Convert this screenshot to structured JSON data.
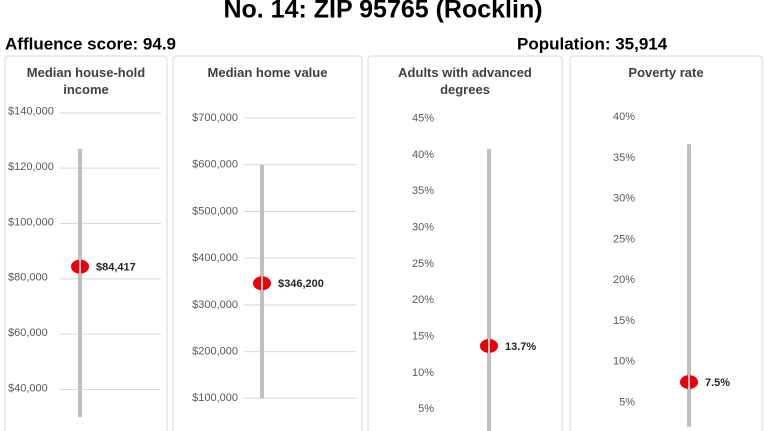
{
  "header": {
    "title": "No. 14: ZIP 95765 (Rocklin)",
    "affluence": "Affluence score: 94.9",
    "population": "Population: 35,914"
  },
  "chart_data": [
    {
      "type": "range-dot",
      "title": "Median house-hold income",
      "range": [
        30000,
        127000
      ],
      "range_color": "#bfbfbf",
      "values": [
        84417
      ],
      "value_labels": [
        "$84,417"
      ],
      "color": "#e8000b",
      "ylim": [
        25000,
        145000
      ],
      "yticks": [
        {
          "value": 40000,
          "label": "$40,000"
        },
        {
          "value": 60000,
          "label": "$60,000"
        },
        {
          "value": 80000,
          "label": "$80,000"
        },
        {
          "value": 100000,
          "label": "$100,000"
        },
        {
          "value": 120000,
          "label": "$120,000"
        },
        {
          "value": 140000,
          "label": "$140,000"
        }
      ],
      "grid": true
    },
    {
      "type": "range-dot",
      "title": "Median home value",
      "range": [
        100000,
        600000
      ],
      "range_color": "#bfbfbf",
      "values": [
        346200
      ],
      "value_labels": [
        "$346,200"
      ],
      "color": "#e8000b",
      "ylim": [
        30000,
        730000
      ],
      "yticks": [
        {
          "value": 100000,
          "label": "$100,000"
        },
        {
          "value": 200000,
          "label": "$200,000"
        },
        {
          "value": 300000,
          "label": "$300,000"
        },
        {
          "value": 400000,
          "label": "$400,000"
        },
        {
          "value": 500000,
          "label": "$500,000"
        },
        {
          "value": 600000,
          "label": "$600,000"
        },
        {
          "value": 700000,
          "label": "$700,000"
        }
      ],
      "grid": true
    },
    {
      "type": "range-dot",
      "title": "Adults with advanced degrees",
      "range": [
        2,
        40.8
      ],
      "range_color": "#bfbfbf",
      "values": [
        13.7
      ],
      "value_labels": [
        "13.7%"
      ],
      "color": "#e8000b",
      "ylim": [
        2,
        47
      ],
      "yticks": [
        {
          "value": 5,
          "label": "5%"
        },
        {
          "value": 10,
          "label": "10%"
        },
        {
          "value": 15,
          "label": "15%"
        },
        {
          "value": 20,
          "label": "20%"
        },
        {
          "value": 25,
          "label": "25%"
        },
        {
          "value": 30,
          "label": "30%"
        },
        {
          "value": 35,
          "label": "35%"
        },
        {
          "value": 40,
          "label": "40%"
        },
        {
          "value": 45,
          "label": "45%"
        }
      ],
      "grid": false
    },
    {
      "type": "range-dot",
      "title": "Poverty rate",
      "range": [
        2,
        36.7
      ],
      "range_color": "#bfbfbf",
      "values": [
        7.5
      ],
      "value_labels": [
        "7.5%"
      ],
      "color": "#e8000b",
      "ylim": [
        1.5,
        41.5
      ],
      "yticks": [
        {
          "value": 5,
          "label": "5%"
        },
        {
          "value": 10,
          "label": "10%"
        },
        {
          "value": 15,
          "label": "15%"
        },
        {
          "value": 20,
          "label": "20%"
        },
        {
          "value": 25,
          "label": "25%"
        },
        {
          "value": 30,
          "label": "30%"
        },
        {
          "value": 35,
          "label": "35%"
        },
        {
          "value": 40,
          "label": "40%"
        }
      ],
      "grid": false
    }
  ]
}
